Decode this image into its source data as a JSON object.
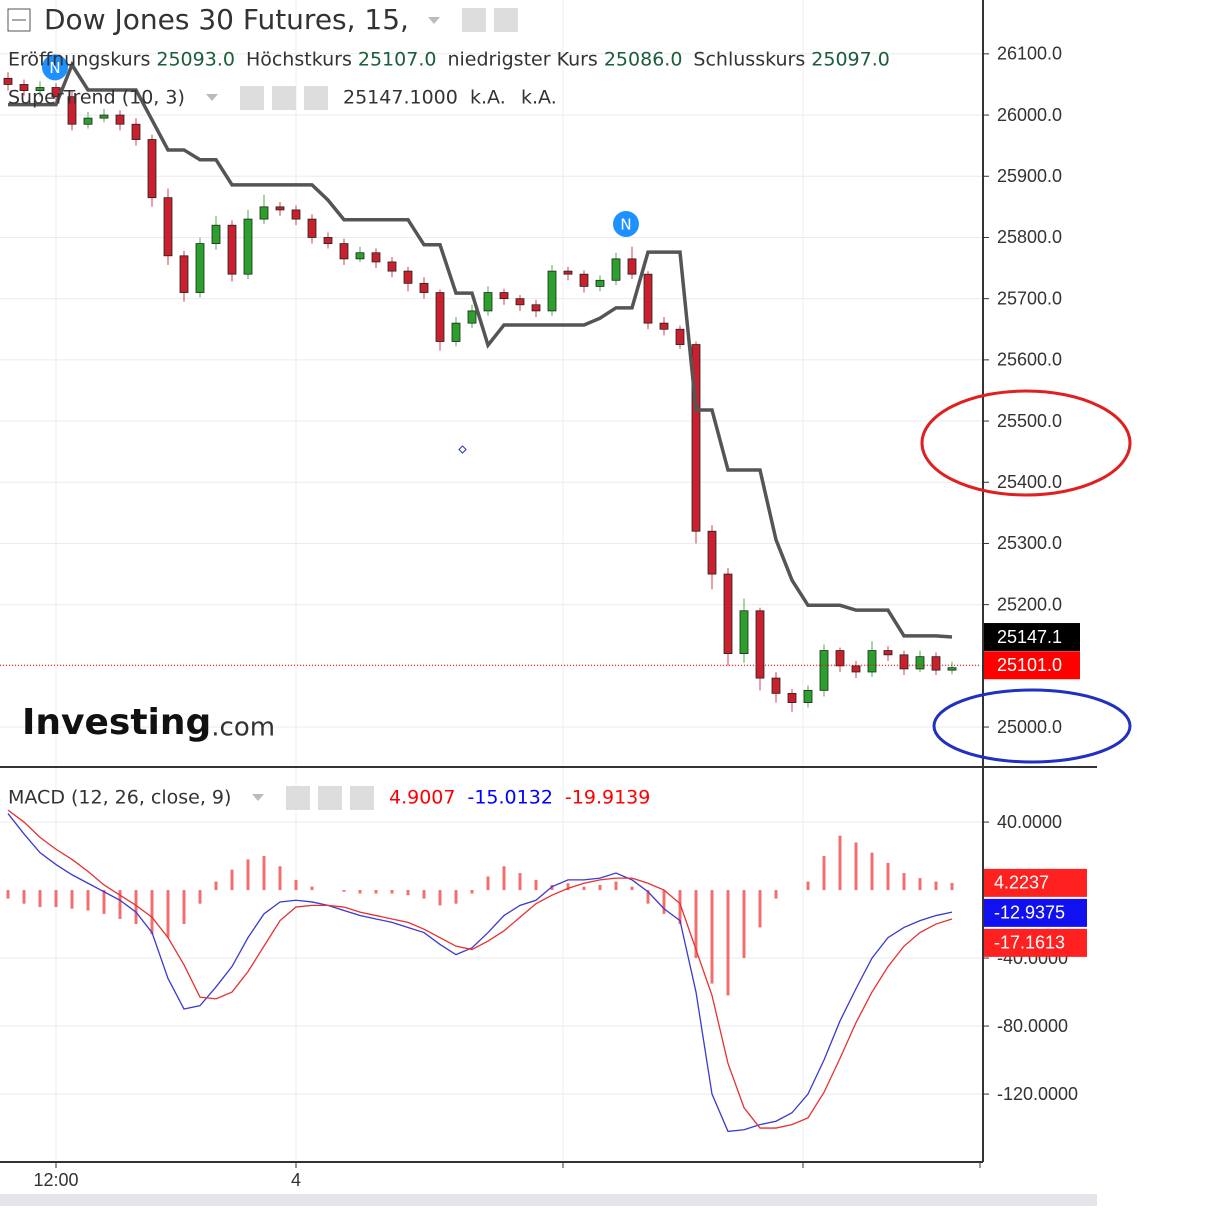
{
  "chart_data": [
    {
      "type": "candlestick",
      "title": "Dow Jones 30 Futures, 15,",
      "ohlc_legend": [
        {
          "label": "Eröffnungskurs",
          "value": "25093.0"
        },
        {
          "label": "Höchstkurs",
          "value": "25107.0"
        },
        {
          "label": "niedrigster Kurs",
          "value": "25086.0"
        },
        {
          "label": "Schlusskurs",
          "value": "25097.0"
        }
      ],
      "indicator_legend": {
        "label": "SuperTrend (10, 3)",
        "values": [
          "25147.1000",
          "k.A.",
          "k.A."
        ]
      },
      "news_markers": [
        "N",
        "N"
      ],
      "logo": [
        "Investing",
        ".com"
      ],
      "categories": [
        null,
        null,
        null,
        "12:00",
        null,
        null,
        null,
        null,
        null,
        null,
        null,
        null,
        null,
        null,
        null,
        null,
        null,
        null,
        "4",
        null,
        null,
        null,
        null,
        null,
        null,
        null,
        null,
        null,
        null,
        null,
        null,
        null,
        null,
        null,
        null,
        null,
        null,
        null,
        null,
        null,
        null,
        null,
        null,
        null,
        null,
        null,
        null,
        null,
        null,
        null,
        null,
        null,
        null,
        null,
        null,
        null,
        null,
        null,
        null,
        null
      ],
      "open": [
        26060,
        26050,
        26040,
        26045,
        26030,
        25985,
        25995,
        26000,
        25985,
        25960,
        25865,
        25770,
        25710,
        25790,
        25820,
        25740,
        25830,
        25850,
        25845,
        25830,
        25800,
        25790,
        25765,
        25775,
        25760,
        25745,
        25725,
        25710,
        25630,
        25660,
        25680,
        25710,
        25700,
        25690,
        25680,
        25745,
        25740,
        25720,
        25730,
        25765,
        25740,
        25660,
        25650,
        25625,
        25320,
        25250,
        25120,
        25190,
        25080,
        25055,
        25040,
        25060,
        25125,
        25100,
        25090,
        25125,
        25118,
        25095,
        25115,
        25093
      ],
      "high": [
        26070,
        26058,
        26055,
        26052,
        26038,
        26005,
        26010,
        26008,
        25995,
        25968,
        25880,
        25778,
        25800,
        25835,
        25828,
        25845,
        25870,
        25858,
        25852,
        25838,
        25808,
        25798,
        25785,
        25782,
        25768,
        25752,
        25735,
        25715,
        25670,
        25690,
        25720,
        25716,
        25706,
        25698,
        25755,
        25752,
        25746,
        25738,
        25775,
        25785,
        25745,
        25670,
        25656,
        25630,
        25330,
        25260,
        25210,
        25195,
        25090,
        25062,
        25068,
        25135,
        25130,
        25108,
        25140,
        25132,
        25125,
        25125,
        25122,
        25107
      ],
      "low": [
        26040,
        26032,
        26030,
        26022,
        25975,
        25978,
        25988,
        25975,
        25950,
        25850,
        25755,
        25695,
        25702,
        25780,
        25728,
        25732,
        25822,
        25835,
        25820,
        25790,
        25782,
        25755,
        25760,
        25750,
        25735,
        25712,
        25700,
        25615,
        25622,
        25652,
        25672,
        25690,
        25680,
        25670,
        25672,
        25730,
        25710,
        25712,
        25722,
        25732,
        25650,
        25640,
        25618,
        25300,
        25225,
        25100,
        25105,
        25060,
        25040,
        25025,
        25032,
        25050,
        25090,
        25080,
        25082,
        25108,
        25085,
        25090,
        25085,
        25086
      ],
      "close": [
        26050,
        26040,
        26045,
        26030,
        25985,
        25995,
        26000,
        25985,
        25960,
        25865,
        25770,
        25710,
        25790,
        25820,
        25740,
        25830,
        25850,
        25845,
        25830,
        25800,
        25790,
        25765,
        25775,
        25760,
        25745,
        25725,
        25710,
        25630,
        25660,
        25680,
        25710,
        25700,
        25690,
        25680,
        25745,
        25740,
        25720,
        25730,
        25765,
        25740,
        25660,
        25650,
        25625,
        25320,
        25250,
        25120,
        25190,
        25080,
        25055,
        25040,
        25060,
        25125,
        25100,
        25090,
        25125,
        25118,
        25095,
        25115,
        25093,
        25097
      ],
      "up_color": "#2ca02c",
      "down_color": "#c8202c",
      "series": [
        {
          "name": "SuperTrend (10, 3)",
          "color": "#555555",
          "values": [
            26017,
            26017,
            26017,
            26017,
            26082,
            26041,
            26041,
            26041,
            26041,
            25992,
            25943,
            25943,
            25927,
            25927,
            25886,
            25886,
            25886,
            25886,
            25886,
            25886,
            25861,
            25829,
            25829,
            25829,
            25829,
            25829,
            25788,
            25788,
            25709,
            25709,
            25624,
            25657,
            25657,
            25657,
            25657,
            25657,
            25657,
            25668,
            25685,
            25685,
            25776,
            25776,
            25776,
            25518,
            25518,
            25420,
            25420,
            25420,
            25306,
            25240,
            25199,
            25199,
            25199,
            25191,
            25191,
            25191,
            25149,
            25149,
            25149,
            25147.1
          ]
        }
      ],
      "price_tags": [
        {
          "value": 25147.1,
          "color": "#000000"
        },
        {
          "value": {
            "value": 25101,
            "label": "25101.0"
          },
          "color": "#ff0000"
        }
      ],
      "ylim": [
        24938,
        26188
      ],
      "yticks": [
        {
          "value": 25000,
          "label": "25000.0"
        },
        {
          "value": 25100,
          "label": "25100.0"
        },
        {
          "value": 25200,
          "label": "25200.0"
        },
        {
          "value": 25300,
          "label": "25300.0"
        },
        {
          "value": 25400,
          "label": "25400.0"
        },
        {
          "value": 25500,
          "label": "25500.0"
        },
        {
          "value": 25600,
          "label": "25600.0"
        },
        {
          "value": 25700,
          "label": "25700.0"
        },
        {
          "value": 25800,
          "label": "25800.0"
        },
        {
          "value": 25900,
          "label": "25900.0"
        },
        {
          "value": 26000,
          "label": "26000.0"
        },
        {
          "value": 26100,
          "label": "26100.0"
        }
      ],
      "grid": true
    },
    {
      "type": "macd",
      "title": "MACD (12, 26, close, 9)",
      "legend_values": [
        {
          "value": 4.9007,
          "color": "#ff0000"
        },
        {
          "value": -15.0132,
          "color": "#0000ff"
        },
        {
          "value": -19.9139,
          "color": "#ff0000"
        }
      ],
      "series": [
        {
          "kind": "histogram",
          "color": "#f07070",
          "values": [
            -5,
            -8,
            -10,
            -10,
            -11,
            -12,
            -14,
            -17,
            -20,
            -26,
            -28,
            -20,
            -8,
            5,
            12,
            18,
            20,
            14,
            6,
            2,
            0,
            -1,
            -2,
            -2,
            -2,
            -3,
            -5,
            -9,
            -8,
            -2,
            8,
            14,
            10,
            6,
            3,
            4,
            2,
            3,
            5,
            2,
            -8,
            -14,
            -20,
            -40,
            -55,
            -62,
            -40,
            -22,
            -5,
            0,
            5,
            20,
            32,
            28,
            22,
            16,
            10,
            7,
            5,
            4.2
          ]
        },
        {
          "kind": "line",
          "color": "#3a3ad0",
          "values": [
            45,
            33,
            22,
            15,
            9,
            4,
            -1,
            -6,
            -13,
            -25,
            -52,
            -70,
            -68,
            -57,
            -45,
            -28,
            -14,
            -7,
            -6,
            -7,
            -9,
            -12,
            -15,
            -17,
            -19,
            -22,
            -25,
            -32,
            -38,
            -34,
            -25,
            -15,
            -9,
            -6,
            2,
            6,
            6,
            7,
            10,
            6,
            -1,
            -11,
            -18,
            -60,
            -120,
            -142,
            -141,
            -138,
            -136,
            -131,
            -120,
            -100,
            -77,
            -58,
            -40,
            -28,
            -22,
            -18,
            -15,
            -13
          ]
        },
        {
          "kind": "line",
          "color": "#e83030",
          "values": [
            47,
            40,
            31,
            24,
            18,
            11,
            3,
            -3,
            -9,
            -16,
            -28,
            -44,
            -63,
            -64,
            -60,
            -48,
            -33,
            -18,
            -10,
            -9,
            -9,
            -10,
            -13,
            -15,
            -17,
            -19,
            -23,
            -28,
            -33,
            -35,
            -30,
            -24,
            -16,
            -8,
            -3,
            1,
            4,
            6,
            7,
            7,
            4,
            0,
            -8,
            -35,
            -62,
            -102,
            -128,
            -140,
            -140,
            -138,
            -134,
            -119,
            -99,
            -78,
            -60,
            -45,
            -33,
            -25,
            -20,
            -17
          ]
        }
      ],
      "value_tags": [
        {
          "value": 4.2237,
          "color": "#ff2020"
        },
        {
          "value": -12.9375,
          "color": "#1010f0"
        },
        {
          "value": -17.1613,
          "color": "#ff2020"
        }
      ],
      "ylim": [
        -158.8,
        71.8
      ],
      "yticks": [
        {
          "value": 40,
          "label": "40.0000"
        },
        {
          "value": -40,
          "label": "-40.0000"
        },
        {
          "value": -80,
          "label": "-80.0000"
        },
        {
          "value": -120,
          "label": "-120.0000"
        }
      ],
      "grid": true
    }
  ]
}
